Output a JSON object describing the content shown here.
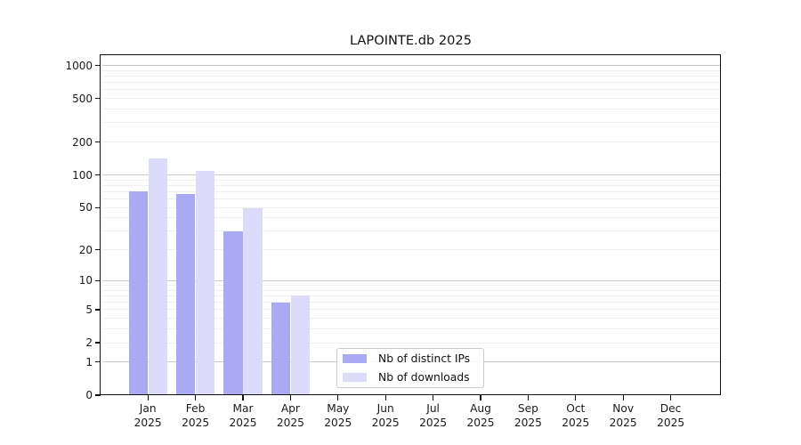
{
  "title": "LAPOINTE.db 2025",
  "colors": {
    "series_ips": "#aaa9f4",
    "series_downloads": "#dcdbfa",
    "grid_major": "#c9c9c9",
    "grid_minor": "#efefef",
    "spine": "#111111",
    "legend_border": "#cbcbcb"
  },
  "chart_data": {
    "type": "bar",
    "title": "LAPOINTE.db 2025",
    "categories": [
      "Jan 2025",
      "Feb 2025",
      "Mar 2025",
      "Apr 2025",
      "May 2025",
      "Jun 2025",
      "Jul 2025",
      "Aug 2025",
      "Sep 2025",
      "Oct 2025",
      "Nov 2025",
      "Dec 2025"
    ],
    "series": [
      {
        "name": "Nb of distinct IPs",
        "color": "#aaa9f4",
        "values": [
          71,
          67,
          30,
          6,
          0,
          0,
          0,
          0,
          0,
          0,
          0,
          0
        ]
      },
      {
        "name": "Nb of downloads",
        "color": "#dcdbfa",
        "values": [
          142,
          108,
          49,
          7,
          0,
          0,
          0,
          0,
          0,
          0,
          0,
          0
        ]
      }
    ],
    "xlabel": "",
    "ylabel": "",
    "yscale": "symlog (log1p)",
    "ylim": [
      0,
      1240
    ],
    "y_major_ticks": [
      0,
      1,
      2,
      5,
      10,
      20,
      50,
      100,
      200,
      500,
      1000
    ],
    "y_minor_gridlines": [
      3,
      4,
      6,
      7,
      8,
      9,
      30,
      40,
      60,
      70,
      80,
      90,
      300,
      400,
      600,
      700,
      800,
      900
    ],
    "grid": true,
    "legend_position": "inside lower-center"
  }
}
